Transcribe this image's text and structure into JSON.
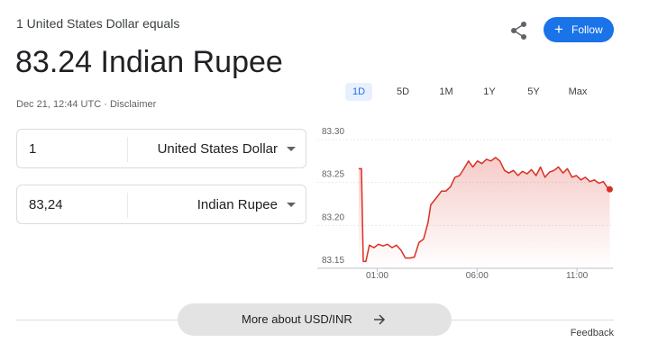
{
  "header": {
    "subtitle": "1 United States Dollar equals",
    "title": "83.24 Indian Rupee",
    "timestamp": "Dec 21, 12:44 UTC",
    "separator": "·",
    "disclaimer": "Disclaimer",
    "follow": "Follow"
  },
  "range_tabs": [
    "1D",
    "5D",
    "1M",
    "1Y",
    "5Y",
    "Max"
  ],
  "converter": {
    "rows": [
      {
        "amount": "1",
        "currency": "United States Dollar"
      },
      {
        "amount": "83,24",
        "currency": "Indian Rupee"
      }
    ]
  },
  "more_button": "More about USD/INR",
  "feedback": "Feedback",
  "chart_data": {
    "type": "line",
    "x": [
      0.07,
      0.21,
      0.3,
      0.43,
      0.61,
      0.84,
      1.06,
      1.29,
      1.51,
      1.74,
      1.96,
      2.19,
      2.41,
      2.64,
      2.86,
      3.09,
      3.32,
      3.54,
      3.68,
      3.99,
      4.22,
      4.44,
      4.67,
      4.89,
      5.12,
      5.34,
      5.57,
      5.79,
      6.02,
      6.24,
      6.47,
      6.69,
      6.92,
      7.14,
      7.37,
      7.59,
      7.82,
      8.05,
      8.27,
      8.5,
      8.72,
      8.95,
      9.17,
      9.4,
      9.62,
      9.85,
      10.07,
      10.3,
      10.52,
      10.75,
      10.97,
      11.2,
      11.42,
      11.65,
      11.87,
      12.1,
      12.32,
      12.55,
      12.64
    ],
    "values": [
      83.266,
      83.266,
      83.158,
      83.158,
      83.177,
      83.174,
      83.178,
      83.176,
      83.178,
      83.174,
      83.177,
      83.171,
      83.162,
      83.162,
      83.163,
      83.18,
      83.184,
      83.203,
      83.224,
      83.233,
      83.24,
      83.24,
      83.245,
      83.256,
      83.258,
      83.266,
      83.275,
      83.268,
      83.275,
      83.272,
      83.277,
      83.275,
      83.279,
      83.275,
      83.264,
      83.261,
      83.264,
      83.258,
      83.263,
      83.26,
      83.265,
      83.258,
      83.268,
      83.256,
      83.262,
      83.264,
      83.268,
      83.261,
      83.266,
      83.256,
      83.258,
      83.253,
      83.256,
      83.251,
      83.253,
      83.249,
      83.251,
      83.243,
      83.242
    ],
    "color": "#d93025",
    "xlim": [
      -2,
      12.8
    ],
    "xticks": [
      {
        "value": 1,
        "label": "01:00"
      },
      {
        "value": 6,
        "label": "06:00"
      },
      {
        "value": 11,
        "label": "11:00"
      }
    ],
    "ylim": [
      83.15,
      83.3
    ],
    "yticks": [
      {
        "value": 83.3,
        "label": "83.30"
      },
      83.25,
      {
        "value": 83.2,
        "label": "83.20"
      },
      83.15
    ],
    "grid": true
  }
}
